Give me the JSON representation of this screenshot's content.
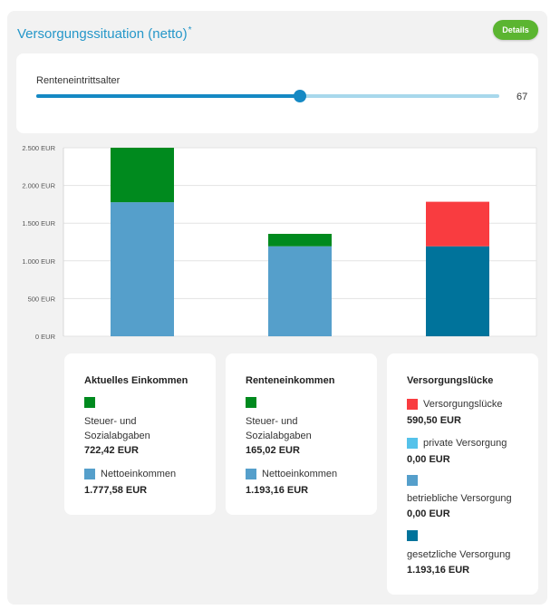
{
  "header": {
    "title": "Versorgungssituation (netto)",
    "marker": "*",
    "details_label": "Details"
  },
  "slider": {
    "label": "Renteneintrittsalter",
    "value": "67",
    "fraction": 0.57
  },
  "colors": {
    "green": "#008a1e",
    "light_blue": "#559fcb",
    "dark_blue": "#00739b",
    "red": "#f93c40",
    "cyan": "#55c2ea",
    "accent": "#2597c9",
    "button": "#5bb531"
  },
  "chart_data": {
    "type": "bar",
    "stacked": true,
    "categories": [
      "Aktuelles Einkommen",
      "Renteneinkommen",
      "Versorgungslücke"
    ],
    "ylim": [
      0,
      2500
    ],
    "yticks": [
      0,
      500,
      1000,
      1500,
      2000,
      2500
    ],
    "ytick_labels": [
      "0 EUR",
      "500 EUR",
      "1.000 EUR",
      "1.500 EUR",
      "2.000 EUR",
      "2.500 EUR"
    ],
    "grid": true,
    "bars": [
      {
        "segments": [
          {
            "value": 1777.58,
            "color": "#559fcb"
          },
          {
            "value": 722.42,
            "color": "#008a1e"
          }
        ]
      },
      {
        "segments": [
          {
            "value": 1193.16,
            "color": "#559fcb"
          },
          {
            "value": 165.02,
            "color": "#008a1e"
          }
        ]
      },
      {
        "segments": [
          {
            "value": 1193.16,
            "color": "#00739b"
          },
          {
            "value": 590.5,
            "color": "#f93c40"
          }
        ]
      }
    ]
  },
  "legend_cards": [
    {
      "title": "Aktuelles Einkommen",
      "items": [
        {
          "label": "Steuer- und Sozialabgaben",
          "value": "722,42 EUR",
          "color": "#008a1e"
        },
        {
          "label": "Nettoeinkommen",
          "value": "1.777,58 EUR",
          "color": "#559fcb"
        }
      ]
    },
    {
      "title": "Renteneinkommen",
      "items": [
        {
          "label": "Steuer- und Sozialabgaben",
          "value": "165,02 EUR",
          "color": "#008a1e"
        },
        {
          "label": "Nettoeinkommen",
          "value": "1.193,16 EUR",
          "color": "#559fcb"
        }
      ]
    },
    {
      "title": "Versorgungslücke",
      "items": [
        {
          "label": "Versorgungslücke",
          "value": "590,50 EUR",
          "color": "#f93c40"
        },
        {
          "label": "private Versorgung",
          "value": "0,00 EUR",
          "color": "#55c2ea"
        },
        {
          "label": "betriebliche Versorgung",
          "value": "0,00 EUR",
          "color": "#559fcb"
        },
        {
          "label": "gesetzliche Versorgung",
          "value": "1.193,16 EUR",
          "color": "#00739b"
        }
      ]
    }
  ]
}
